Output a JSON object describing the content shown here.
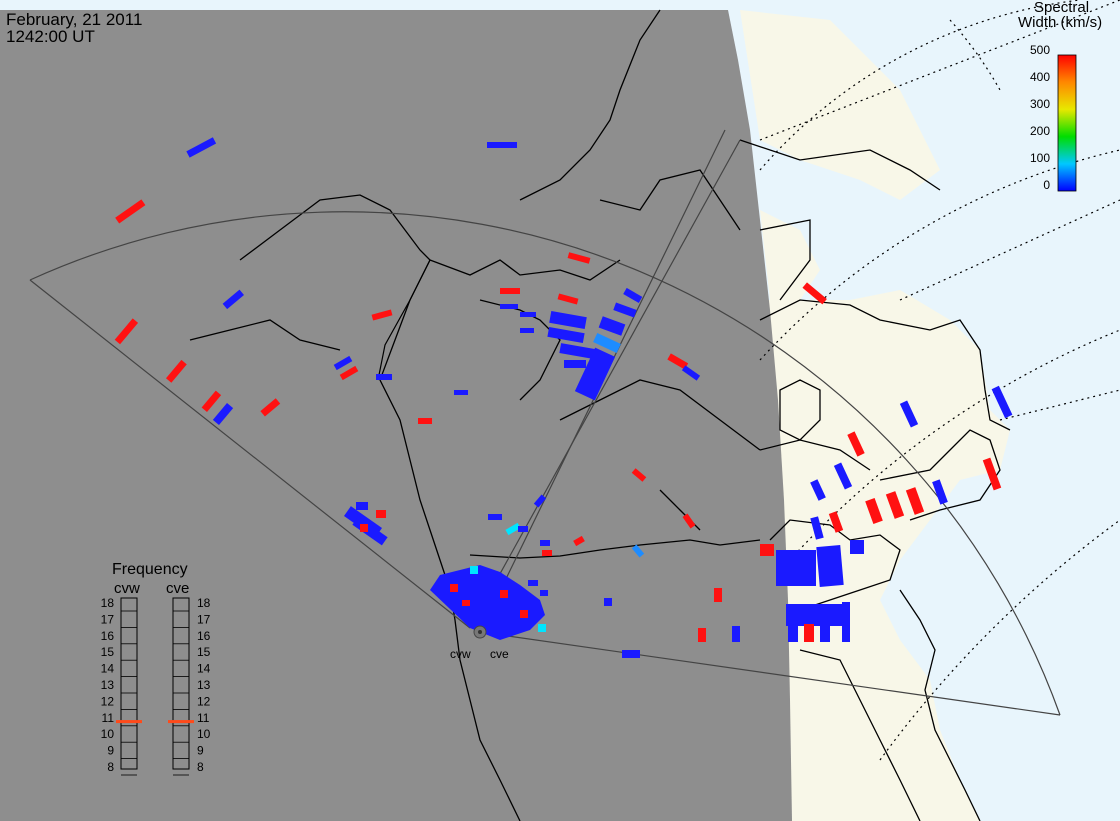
{
  "header": {
    "date": "February, 21 2011",
    "time": "1242:00 UT"
  },
  "colorbar": {
    "title_line1": "Spectral",
    "title_line2": "Width (km/s)",
    "tick_labels": [
      "500",
      "400",
      "300",
      "200",
      "100",
      "0"
    ]
  },
  "frequency": {
    "title": "Frequency",
    "left_label": "cvw",
    "right_label": "cve",
    "scale": [
      "18",
      "17",
      "16",
      "15",
      "14",
      "13",
      "12",
      "11",
      "10",
      "9",
      "8"
    ],
    "cvw_value": 10.8,
    "cve_value": 10.8
  },
  "radars": [
    {
      "label": "cvw"
    },
    {
      "label": "cve"
    }
  ],
  "colors": {
    "night": "#8e8e8e",
    "ocean": "#e8f5fc",
    "land": "#f8f7e8",
    "low": "#1a1aff",
    "high": "#ff1111",
    "mid": "#1e8cff",
    "cyan": "#00e5ff"
  }
}
